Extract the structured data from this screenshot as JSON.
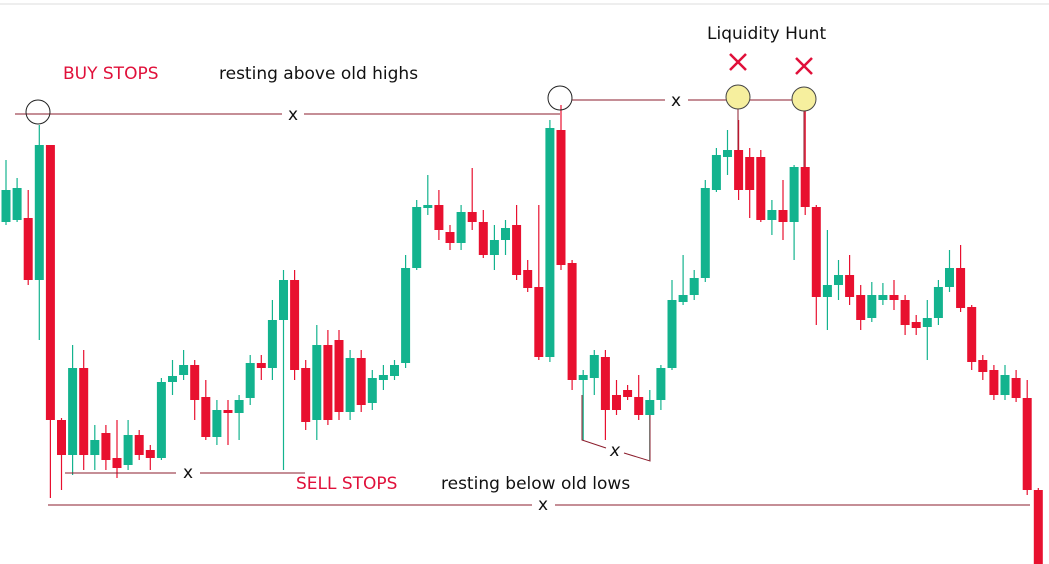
{
  "chart_data": {
    "type": "candlestick",
    "annotations": {
      "buy_stops": "BUY STOPS",
      "buy_note": "resting above old highs",
      "hunt": "Liquidity Hunt",
      "sell_stops": "SELL STOPS",
      "sell_note": "resting below old lows",
      "x_marks": [
        "x",
        "x",
        "x",
        "x",
        "x"
      ]
    },
    "up_color": "#13b38e",
    "down_color": "#e8102f",
    "ylim": [
      0,
      564
    ],
    "open": [
      342,
      344,
      346,
      284,
      419,
      144,
      109,
      196,
      109,
      131,
      106,
      99,
      129,
      114,
      106,
      182,
      189,
      199,
      167,
      127,
      154,
      151,
      166,
      201,
      196,
      244,
      284,
      196,
      144,
      219,
      224,
      152,
      206,
      161,
      184,
      188,
      201,
      296,
      356,
      359,
      332,
      321,
      352,
      342,
      309,
      324,
      339,
      294,
      277,
      207,
      434,
      301,
      184,
      186,
      207,
      169,
      174,
      167,
      149,
      164,
      196,
      262,
      269,
      286,
      374,
      407,
      414,
      407,
      407,
      344,
      354,
      342,
      397,
      357,
      267,
      279,
      289,
      269,
      246,
      264,
      269,
      264,
      242,
      237,
      246,
      277,
      296,
      257,
      204,
      194,
      169,
      186,
      166,
      74
    ],
    "high": [
      404,
      386,
      374,
      439,
      419,
      146,
      219,
      214,
      139,
      139,
      144,
      144,
      134,
      119,
      186,
      204,
      214,
      204,
      184,
      164,
      164,
      169,
      209,
      209,
      264,
      294,
      294,
      204,
      239,
      234,
      234,
      214,
      214,
      194,
      199,
      204,
      309,
      364,
      389,
      374,
      339,
      359,
      396,
      354,
      339,
      344,
      359,
      304,
      359,
      444,
      459,
      304,
      194,
      214,
      214,
      184,
      179,
      189,
      174,
      199,
      284,
      309,
      294,
      384,
      416,
      434,
      444,
      416,
      414,
      364,
      384,
      399,
      469,
      359,
      334,
      304,
      309,
      279,
      282,
      281,
      284,
      269,
      249,
      264,
      284,
      314,
      319,
      259,
      209,
      199,
      199,
      194,
      184,
      76
    ],
    "low": [
      339,
      342,
      279,
      224,
      66,
      74,
      89,
      94,
      94,
      94,
      86,
      94,
      104,
      94,
      104,
      169,
      184,
      144,
      124,
      119,
      119,
      124,
      159,
      184,
      184,
      94,
      184,
      134,
      124,
      139,
      144,
      144,
      152,
      154,
      174,
      184,
      196,
      294,
      349,
      324,
      314,
      314,
      334,
      306,
      294,
      309,
      284,
      272,
      204,
      202,
      294,
      174,
      124,
      169,
      124,
      149,
      164,
      144,
      104,
      154,
      194,
      259,
      264,
      282,
      372,
      389,
      364,
      346,
      342,
      329,
      324,
      304,
      349,
      239,
      234,
      264,
      259,
      234,
      242,
      259,
      254,
      229,
      229,
      204,
      239,
      272,
      252,
      194,
      184,
      164,
      164,
      162,
      69,
      0
    ],
    "close": [
      374,
      376,
      284,
      419,
      144,
      109,
      196,
      109,
      124,
      104,
      96,
      129,
      109,
      106,
      182,
      188,
      199,
      164,
      127,
      154,
      151,
      164,
      201,
      196,
      244,
      284,
      194,
      142,
      219,
      144,
      152,
      206,
      159,
      186,
      189,
      199,
      296,
      357,
      359,
      334,
      321,
      352,
      342,
      309,
      324,
      336,
      289,
      276,
      207,
      436,
      299,
      184,
      189,
      209,
      154,
      154,
      167,
      149,
      164,
      196,
      264,
      269,
      286,
      376,
      409,
      414,
      374,
      374,
      344,
      354,
      342,
      397,
      357,
      267,
      279,
      289,
      267,
      244,
      269,
      269,
      264,
      239,
      236,
      246,
      277,
      296,
      256,
      202,
      192,
      169,
      189,
      166,
      74,
      0
    ]
  }
}
